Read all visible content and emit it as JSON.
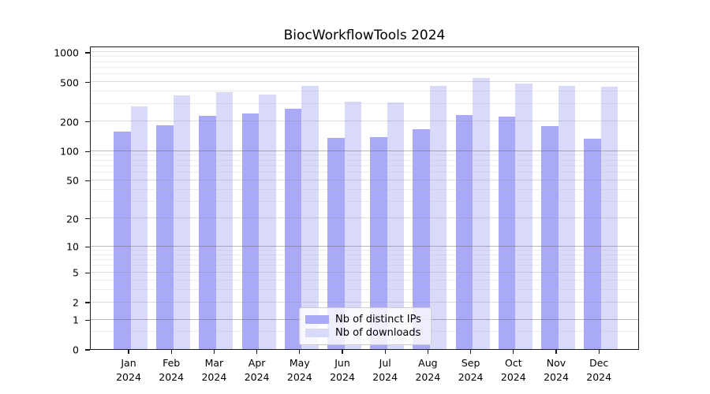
{
  "title": "BiocWorkflowTools 2024",
  "legend": {
    "items": [
      {
        "label": "Nb of distinct IPs",
        "color": "#a9a9f7"
      },
      {
        "label": "Nb of downloads",
        "color": "#d9d9fa"
      }
    ]
  },
  "chart_data": {
    "type": "bar",
    "title": "BiocWorkflowTools 2024",
    "categories": [
      "Jan 2024",
      "Feb 2024",
      "Mar 2024",
      "Apr 2024",
      "May 2024",
      "Jun 2024",
      "Jul 2024",
      "Aug 2024",
      "Sep 2024",
      "Oct 2024",
      "Nov 2024",
      "Dec 2024"
    ],
    "x_tick_labels": [
      {
        "month": "Jan",
        "year": "2024"
      },
      {
        "month": "Feb",
        "year": "2024"
      },
      {
        "month": "Mar",
        "year": "2024"
      },
      {
        "month": "Apr",
        "year": "2024"
      },
      {
        "month": "May",
        "year": "2024"
      },
      {
        "month": "Jun",
        "year": "2024"
      },
      {
        "month": "Jul",
        "year": "2024"
      },
      {
        "month": "Aug",
        "year": "2024"
      },
      {
        "month": "Sep",
        "year": "2024"
      },
      {
        "month": "Oct",
        "year": "2024"
      },
      {
        "month": "Nov",
        "year": "2024"
      },
      {
        "month": "Dec",
        "year": "2024"
      }
    ],
    "series": [
      {
        "name": "Nb of distinct IPs",
        "color": "#a9a9f7",
        "values": [
          157,
          181,
          225,
          240,
          265,
          135,
          137,
          165,
          232,
          221,
          178,
          133
        ]
      },
      {
        "name": "Nb of downloads",
        "color": "#d9d9fa",
        "values": [
          282,
          361,
          395,
          372,
          453,
          313,
          309,
          450,
          547,
          484,
          450,
          442
        ]
      }
    ],
    "xlabel": "",
    "ylabel": "",
    "ylim": [
      0,
      1157
    ],
    "grid": true,
    "legend_position": "lower center",
    "yscale": {
      "type": "log1p",
      "note": "position proportional to log10(1+value)",
      "total_decades": 3.0638
    },
    "y_ticks": [
      {
        "value": 0,
        "label": "0"
      },
      {
        "value": 1,
        "label": "1"
      },
      {
        "value": 2,
        "label": "2"
      },
      {
        "value": 5,
        "label": "5"
      },
      {
        "value": 10,
        "label": "10"
      },
      {
        "value": 20,
        "label": "20"
      },
      {
        "value": 50,
        "label": "50"
      },
      {
        "value": 100,
        "label": "100"
      },
      {
        "value": 200,
        "label": "200"
      },
      {
        "value": 500,
        "label": "500"
      },
      {
        "value": 1000,
        "label": "1000"
      }
    ],
    "y_gridlines": {
      "major": [
        1,
        10,
        100
      ],
      "light": [
        2,
        5,
        20,
        50,
        200,
        500,
        1000
      ],
      "minor": [
        0.5,
        3,
        4,
        6,
        7,
        8,
        9,
        30,
        40,
        60,
        70,
        80,
        90,
        300,
        400,
        600,
        700,
        800,
        900
      ]
    }
  }
}
